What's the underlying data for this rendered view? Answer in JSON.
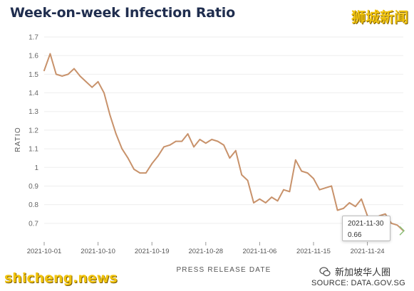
{
  "title": "Week-on-week Infection Ratio",
  "watermark_top": "狮城新闻",
  "watermark_bottom_left": "shicheng.news",
  "watermark_bottom_right": "新加坡华人圈",
  "source": "SOURCE: DATA.GOV.SG",
  "colors": {
    "line": "#c8926b",
    "title": "#1f2d4e",
    "watermark": "#f1c40f",
    "tooltip_marker": "#8fbf7a"
  },
  "tooltip": {
    "date": "2021-11-30",
    "value": "0.66"
  },
  "chart_data": {
    "type": "line",
    "title": "Week-on-week Infection Ratio",
    "xlabel": "PRESS RELEASE DATE",
    "ylabel": "RATIO",
    "ylim": [
      0.6,
      1.7
    ],
    "grid": "horizontal",
    "yticks": [
      0.7,
      0.8,
      0.9,
      1,
      1.1,
      1.2,
      1.3,
      1.4,
      1.5,
      1.6,
      1.7
    ],
    "xticks": [
      "2021-10-01",
      "2021-10-10",
      "2021-10-19",
      "2021-10-28",
      "2021-11-06",
      "2021-11-15",
      "2021-11-24"
    ],
    "x": [
      "2021-10-01",
      "2021-10-02",
      "2021-10-03",
      "2021-10-04",
      "2021-10-05",
      "2021-10-06",
      "2021-10-07",
      "2021-10-08",
      "2021-10-09",
      "2021-10-10",
      "2021-10-11",
      "2021-10-12",
      "2021-10-13",
      "2021-10-14",
      "2021-10-15",
      "2021-10-16",
      "2021-10-17",
      "2021-10-18",
      "2021-10-19",
      "2021-10-20",
      "2021-10-21",
      "2021-10-22",
      "2021-10-23",
      "2021-10-24",
      "2021-10-25",
      "2021-10-26",
      "2021-10-27",
      "2021-10-28",
      "2021-10-29",
      "2021-10-30",
      "2021-10-31",
      "2021-11-01",
      "2021-11-02",
      "2021-11-03",
      "2021-11-04",
      "2021-11-05",
      "2021-11-06",
      "2021-11-07",
      "2021-11-08",
      "2021-11-09",
      "2021-11-10",
      "2021-11-11",
      "2021-11-12",
      "2021-11-13",
      "2021-11-14",
      "2021-11-15",
      "2021-11-16",
      "2021-11-17",
      "2021-11-18",
      "2021-11-19",
      "2021-11-20",
      "2021-11-21",
      "2021-11-22",
      "2021-11-23",
      "2021-11-24",
      "2021-11-25",
      "2021-11-26",
      "2021-11-27",
      "2021-11-28",
      "2021-11-29",
      "2021-11-30"
    ],
    "series": [
      {
        "values": [
          1.52,
          1.61,
          1.5,
          1.49,
          1.5,
          1.53,
          1.49,
          1.46,
          1.43,
          1.46,
          1.4,
          1.28,
          1.18,
          1.1,
          1.05,
          0.99,
          0.97,
          0.97,
          1.02,
          1.06,
          1.11,
          1.12,
          1.14,
          1.14,
          1.18,
          1.11,
          1.15,
          1.13,
          1.15,
          1.14,
          1.12,
          1.05,
          1.09,
          0.96,
          0.93,
          0.81,
          0.83,
          0.81,
          0.84,
          0.82,
          0.88,
          0.87,
          1.04,
          0.98,
          0.97,
          0.94,
          0.88,
          0.89,
          0.9,
          0.77,
          0.78,
          0.81,
          0.79,
          0.83,
          0.74,
          0.72,
          0.74,
          0.75,
          0.7,
          0.69,
          0.66
        ]
      }
    ]
  }
}
